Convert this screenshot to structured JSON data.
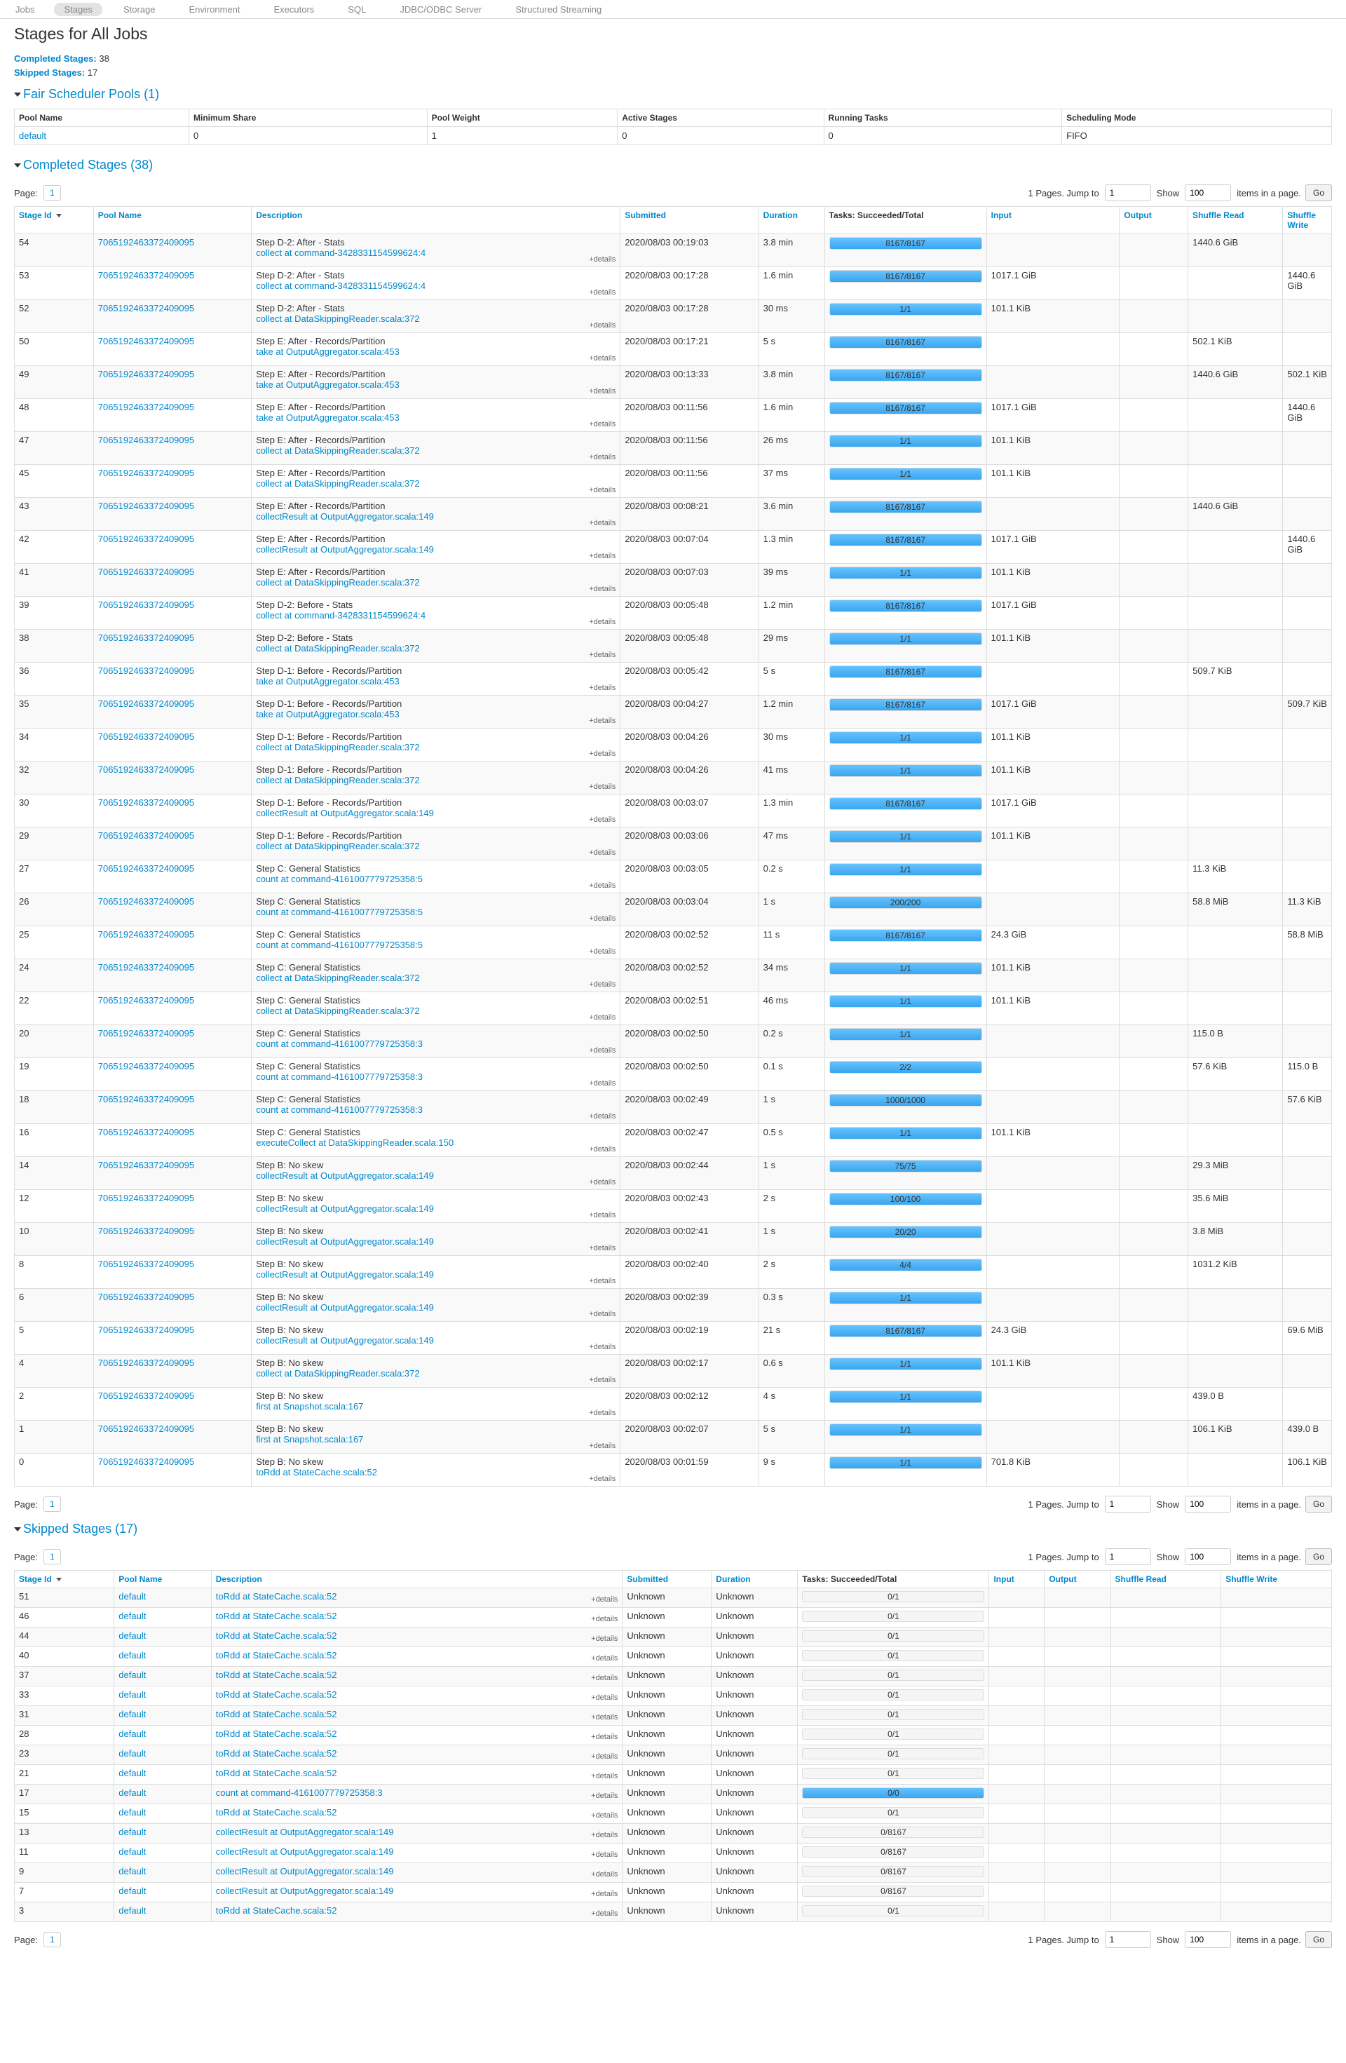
{
  "nav": {
    "tabs": [
      "Jobs",
      "Stages",
      "Storage",
      "Environment",
      "Executors",
      "SQL",
      "JDBC/ODBC Server",
      "Structured Streaming"
    ],
    "active": "Stages"
  },
  "page_title": "Stages for All Jobs",
  "summary": {
    "completed_label": "Completed Stages:",
    "completed_value": "38",
    "skipped_label": "Skipped Stages:",
    "skipped_value": "17"
  },
  "pools": {
    "heading": "Fair Scheduler Pools (1)",
    "columns": [
      "Pool Name",
      "Minimum Share",
      "Pool Weight",
      "Active Stages",
      "Running Tasks",
      "Scheduling Mode"
    ],
    "rows": [
      [
        "default",
        "0",
        "1",
        "0",
        "0",
        "FIFO"
      ]
    ]
  },
  "completed": {
    "heading": "Completed Stages (38)",
    "columns": [
      "Stage Id",
      "Pool Name",
      "Description",
      "Submitted",
      "Duration",
      "Tasks: Succeeded/Total",
      "Input",
      "Output",
      "Shuffle Read",
      "Shuffle Write"
    ],
    "details_label": "+details",
    "rows": [
      [
        "54",
        "7065192463372409095",
        "Step D-2: After - Stats",
        "collect at command-3428331154599624:4",
        "2020/08/03 00:19:03",
        "3.8 min",
        "8167/8167",
        "",
        "",
        "1440.6 GiB",
        ""
      ],
      [
        "53",
        "7065192463372409095",
        "Step D-2: After - Stats",
        "collect at command-3428331154599624:4",
        "2020/08/03 00:17:28",
        "1.6 min",
        "8167/8167",
        "1017.1 GiB",
        "",
        "",
        "1440.6 GiB"
      ],
      [
        "52",
        "7065192463372409095",
        "Step D-2: After - Stats",
        "collect at DataSkippingReader.scala:372",
        "2020/08/03 00:17:28",
        "30 ms",
        "1/1",
        "101.1 KiB",
        "",
        "",
        ""
      ],
      [
        "50",
        "7065192463372409095",
        "Step E: After - Records/Partition",
        "take at OutputAggregator.scala:453",
        "2020/08/03 00:17:21",
        "5 s",
        "8167/8167",
        "",
        "",
        "502.1 KiB",
        ""
      ],
      [
        "49",
        "7065192463372409095",
        "Step E: After - Records/Partition",
        "take at OutputAggregator.scala:453",
        "2020/08/03 00:13:33",
        "3.8 min",
        "8167/8167",
        "",
        "",
        "1440.6 GiB",
        "502.1 KiB"
      ],
      [
        "48",
        "7065192463372409095",
        "Step E: After - Records/Partition",
        "take at OutputAggregator.scala:453",
        "2020/08/03 00:11:56",
        "1.6 min",
        "8167/8167",
        "1017.1 GiB",
        "",
        "",
        "1440.6 GiB"
      ],
      [
        "47",
        "7065192463372409095",
        "Step E: After - Records/Partition",
        "collect at DataSkippingReader.scala:372",
        "2020/08/03 00:11:56",
        "26 ms",
        "1/1",
        "101.1 KiB",
        "",
        "",
        ""
      ],
      [
        "45",
        "7065192463372409095",
        "Step E: After - Records/Partition",
        "collect at DataSkippingReader.scala:372",
        "2020/08/03 00:11:56",
        "37 ms",
        "1/1",
        "101.1 KiB",
        "",
        "",
        ""
      ],
      [
        "43",
        "7065192463372409095",
        "Step E: After - Records/Partition",
        "collectResult at OutputAggregator.scala:149",
        "2020/08/03 00:08:21",
        "3.6 min",
        "8167/8167",
        "",
        "",
        "1440.6 GiB",
        ""
      ],
      [
        "42",
        "7065192463372409095",
        "Step E: After - Records/Partition",
        "collectResult at OutputAggregator.scala:149",
        "2020/08/03 00:07:04",
        "1.3 min",
        "8167/8167",
        "1017.1 GiB",
        "",
        "",
        "1440.6 GiB"
      ],
      [
        "41",
        "7065192463372409095",
        "Step E: After - Records/Partition",
        "collect at DataSkippingReader.scala:372",
        "2020/08/03 00:07:03",
        "39 ms",
        "1/1",
        "101.1 KiB",
        "",
        "",
        ""
      ],
      [
        "39",
        "7065192463372409095",
        "Step D-2: Before - Stats",
        "collect at command-3428331154599624:4",
        "2020/08/03 00:05:48",
        "1.2 min",
        "8167/8167",
        "1017.1 GiB",
        "",
        "",
        ""
      ],
      [
        "38",
        "7065192463372409095",
        "Step D-2: Before - Stats",
        "collect at DataSkippingReader.scala:372",
        "2020/08/03 00:05:48",
        "29 ms",
        "1/1",
        "101.1 KiB",
        "",
        "",
        ""
      ],
      [
        "36",
        "7065192463372409095",
        "Step D-1: Before - Records/Partition",
        "take at OutputAggregator.scala:453",
        "2020/08/03 00:05:42",
        "5 s",
        "8167/8167",
        "",
        "",
        "509.7 KiB",
        ""
      ],
      [
        "35",
        "7065192463372409095",
        "Step D-1: Before - Records/Partition",
        "take at OutputAggregator.scala:453",
        "2020/08/03 00:04:27",
        "1.2 min",
        "8167/8167",
        "1017.1 GiB",
        "",
        "",
        "509.7 KiB"
      ],
      [
        "34",
        "7065192463372409095",
        "Step D-1: Before - Records/Partition",
        "collect at DataSkippingReader.scala:372",
        "2020/08/03 00:04:26",
        "30 ms",
        "1/1",
        "101.1 KiB",
        "",
        "",
        ""
      ],
      [
        "32",
        "7065192463372409095",
        "Step D-1: Before - Records/Partition",
        "collect at DataSkippingReader.scala:372",
        "2020/08/03 00:04:26",
        "41 ms",
        "1/1",
        "101.1 KiB",
        "",
        "",
        ""
      ],
      [
        "30",
        "7065192463372409095",
        "Step D-1: Before - Records/Partition",
        "collectResult at OutputAggregator.scala:149",
        "2020/08/03 00:03:07",
        "1.3 min",
        "8167/8167",
        "1017.1 GiB",
        "",
        "",
        ""
      ],
      [
        "29",
        "7065192463372409095",
        "Step D-1: Before - Records/Partition",
        "collect at DataSkippingReader.scala:372",
        "2020/08/03 00:03:06",
        "47 ms",
        "1/1",
        "101.1 KiB",
        "",
        "",
        ""
      ],
      [
        "27",
        "7065192463372409095",
        "Step C: General Statistics",
        "count at command-4161007779725358:5",
        "2020/08/03 00:03:05",
        "0.2 s",
        "1/1",
        "",
        "",
        "11.3 KiB",
        ""
      ],
      [
        "26",
        "7065192463372409095",
        "Step C: General Statistics",
        "count at command-4161007779725358:5",
        "2020/08/03 00:03:04",
        "1 s",
        "200/200",
        "",
        "",
        "58.8 MiB",
        "11.3 KiB"
      ],
      [
        "25",
        "7065192463372409095",
        "Step C: General Statistics",
        "count at command-4161007779725358:5",
        "2020/08/03 00:02:52",
        "11 s",
        "8167/8167",
        "24.3 GiB",
        "",
        "",
        "58.8 MiB"
      ],
      [
        "24",
        "7065192463372409095",
        "Step C: General Statistics",
        "collect at DataSkippingReader.scala:372",
        "2020/08/03 00:02:52",
        "34 ms",
        "1/1",
        "101.1 KiB",
        "",
        "",
        ""
      ],
      [
        "22",
        "7065192463372409095",
        "Step C: General Statistics",
        "collect at DataSkippingReader.scala:372",
        "2020/08/03 00:02:51",
        "46 ms",
        "1/1",
        "101.1 KiB",
        "",
        "",
        ""
      ],
      [
        "20",
        "7065192463372409095",
        "Step C: General Statistics",
        "count at command-4161007779725358:3",
        "2020/08/03 00:02:50",
        "0.2 s",
        "1/1",
        "",
        "",
        "115.0 B",
        ""
      ],
      [
        "19",
        "7065192463372409095",
        "Step C: General Statistics",
        "count at command-4161007779725358:3",
        "2020/08/03 00:02:50",
        "0.1 s",
        "2/2",
        "",
        "",
        "57.6 KiB",
        "115.0 B"
      ],
      [
        "18",
        "7065192463372409095",
        "Step C: General Statistics",
        "count at command-4161007779725358:3",
        "2020/08/03 00:02:49",
        "1 s",
        "1000/1000",
        "",
        "",
        "",
        "57.6 KiB"
      ],
      [
        "16",
        "7065192463372409095",
        "Step C: General Statistics",
        "executeCollect at DataSkippingReader.scala:150",
        "2020/08/03 00:02:47",
        "0.5 s",
        "1/1",
        "101.1 KiB",
        "",
        "",
        ""
      ],
      [
        "14",
        "7065192463372409095",
        "Step B: No skew",
        "collectResult at OutputAggregator.scala:149",
        "2020/08/03 00:02:44",
        "1 s",
        "75/75",
        "",
        "",
        "29.3 MiB",
        ""
      ],
      [
        "12",
        "7065192463372409095",
        "Step B: No skew",
        "collectResult at OutputAggregator.scala:149",
        "2020/08/03 00:02:43",
        "2 s",
        "100/100",
        "",
        "",
        "35.6 MiB",
        ""
      ],
      [
        "10",
        "7065192463372409095",
        "Step B: No skew",
        "collectResult at OutputAggregator.scala:149",
        "2020/08/03 00:02:41",
        "1 s",
        "20/20",
        "",
        "",
        "3.8 MiB",
        ""
      ],
      [
        "8",
        "7065192463372409095",
        "Step B: No skew",
        "collectResult at OutputAggregator.scala:149",
        "2020/08/03 00:02:40",
        "2 s",
        "4/4",
        "",
        "",
        "1031.2 KiB",
        ""
      ],
      [
        "6",
        "7065192463372409095",
        "Step B: No skew",
        "collectResult at OutputAggregator.scala:149",
        "2020/08/03 00:02:39",
        "0.3 s",
        "1/1",
        "",
        "",
        "",
        ""
      ],
      [
        "5",
        "7065192463372409095",
        "Step B: No skew",
        "collectResult at OutputAggregator.scala:149",
        "2020/08/03 00:02:19",
        "21 s",
        "8167/8167",
        "24.3 GiB",
        "",
        "",
        "69.6 MiB"
      ],
      [
        "4",
        "7065192463372409095",
        "Step B: No skew",
        "collect at DataSkippingReader.scala:372",
        "2020/08/03 00:02:17",
        "0.6 s",
        "1/1",
        "101.1 KiB",
        "",
        "",
        ""
      ],
      [
        "2",
        "7065192463372409095",
        "Step B: No skew",
        "first at Snapshot.scala:167",
        "2020/08/03 00:02:12",
        "4 s",
        "1/1",
        "",
        "",
        "439.0 B",
        ""
      ],
      [
        "1",
        "7065192463372409095",
        "Step B: No skew",
        "first at Snapshot.scala:167",
        "2020/08/03 00:02:07",
        "5 s",
        "1/1",
        "",
        "",
        "106.1 KiB",
        "439.0 B"
      ],
      [
        "0",
        "7065192463372409095",
        "Step B: No skew",
        "toRdd at StateCache.scala:52",
        "2020/08/03 00:01:59",
        "9 s",
        "1/1",
        "701.8 KiB",
        "",
        "",
        "106.1 KiB"
      ]
    ]
  },
  "skipped": {
    "heading": "Skipped Stages (17)",
    "columns": [
      "Stage Id",
      "Pool Name",
      "Description",
      "Submitted",
      "Duration",
      "Tasks: Succeeded/Total",
      "Input",
      "Output",
      "Shuffle Read",
      "Shuffle Write"
    ],
    "details_label": "+details",
    "rows": [
      [
        "51",
        "default",
        "toRdd at StateCache.scala:52",
        "Unknown",
        "Unknown",
        "0/1",
        0
      ],
      [
        "46",
        "default",
        "toRdd at StateCache.scala:52",
        "Unknown",
        "Unknown",
        "0/1",
        0
      ],
      [
        "44",
        "default",
        "toRdd at StateCache.scala:52",
        "Unknown",
        "Unknown",
        "0/1",
        0
      ],
      [
        "40",
        "default",
        "toRdd at StateCache.scala:52",
        "Unknown",
        "Unknown",
        "0/1",
        0
      ],
      [
        "37",
        "default",
        "toRdd at StateCache.scala:52",
        "Unknown",
        "Unknown",
        "0/1",
        0
      ],
      [
        "33",
        "default",
        "toRdd at StateCache.scala:52",
        "Unknown",
        "Unknown",
        "0/1",
        0
      ],
      [
        "31",
        "default",
        "toRdd at StateCache.scala:52",
        "Unknown",
        "Unknown",
        "0/1",
        0
      ],
      [
        "28",
        "default",
        "toRdd at StateCache.scala:52",
        "Unknown",
        "Unknown",
        "0/1",
        0
      ],
      [
        "23",
        "default",
        "toRdd at StateCache.scala:52",
        "Unknown",
        "Unknown",
        "0/1",
        0
      ],
      [
        "21",
        "default",
        "toRdd at StateCache.scala:52",
        "Unknown",
        "Unknown",
        "0/1",
        0
      ],
      [
        "17",
        "default",
        "count at command-4161007779725358:3",
        "Unknown",
        "Unknown",
        "0/0",
        1
      ],
      [
        "15",
        "default",
        "toRdd at StateCache.scala:52",
        "Unknown",
        "Unknown",
        "0/1",
        0
      ],
      [
        "13",
        "default",
        "collectResult at OutputAggregator.scala:149",
        "Unknown",
        "Unknown",
        "0/8167",
        0
      ],
      [
        "11",
        "default",
        "collectResult at OutputAggregator.scala:149",
        "Unknown",
        "Unknown",
        "0/8167",
        0
      ],
      [
        "9",
        "default",
        "collectResult at OutputAggregator.scala:149",
        "Unknown",
        "Unknown",
        "0/8167",
        0
      ],
      [
        "7",
        "default",
        "collectResult at OutputAggregator.scala:149",
        "Unknown",
        "Unknown",
        "0/8167",
        0
      ],
      [
        "3",
        "default",
        "toRdd at StateCache.scala:52",
        "Unknown",
        "Unknown",
        "0/1",
        0
      ]
    ]
  },
  "pager": {
    "page_label": "Page:",
    "page_value": "1",
    "pages_text": "1 Pages. Jump to",
    "jump_value": "1",
    "show_label": "Show",
    "show_value": "100",
    "items_text": "items in a page.",
    "go_label": "Go"
  },
  "colors": {
    "link": "#0088cc",
    "progress": "#3aa6ef"
  }
}
